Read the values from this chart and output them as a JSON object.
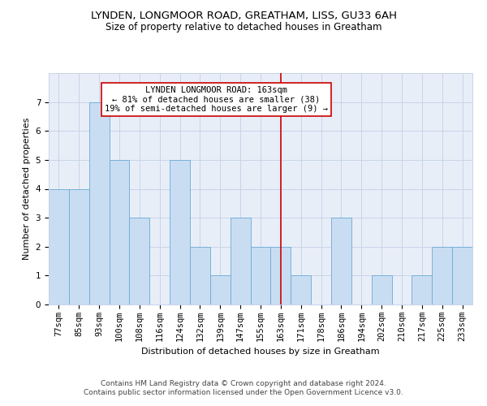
{
  "title1": "LYNDEN, LONGMOOR ROAD, GREATHAM, LISS, GU33 6AH",
  "title2": "Size of property relative to detached houses in Greatham",
  "xlabel": "Distribution of detached houses by size in Greatham",
  "ylabel": "Number of detached properties",
  "categories": [
    "77sqm",
    "85sqm",
    "93sqm",
    "100sqm",
    "108sqm",
    "116sqm",
    "124sqm",
    "132sqm",
    "139sqm",
    "147sqm",
    "155sqm",
    "163sqm",
    "171sqm",
    "178sqm",
    "186sqm",
    "194sqm",
    "202sqm",
    "210sqm",
    "217sqm",
    "225sqm",
    "233sqm"
  ],
  "values": [
    4,
    4,
    7,
    5,
    3,
    0,
    5,
    2,
    1,
    3,
    2,
    2,
    1,
    0,
    3,
    0,
    1,
    0,
    1,
    2,
    2
  ],
  "bar_color": "#c9ddf2",
  "bar_edgecolor": "#6aaad4",
  "highlight_index": 11,
  "highlight_line_color": "#cc0000",
  "annotation_text": "LYNDEN LONGMOOR ROAD: 163sqm\n← 81% of detached houses are smaller (38)\n19% of semi-detached houses are larger (9) →",
  "annotation_box_color": "#ffffff",
  "annotation_box_edgecolor": "#cc0000",
  "ylim": [
    0,
    8
  ],
  "yticks": [
    0,
    1,
    2,
    3,
    4,
    5,
    6,
    7,
    8
  ],
  "grid_color": "#c8d4e8",
  "background_color": "#e8eef8",
  "footer_line1": "Contains HM Land Registry data © Crown copyright and database right 2024.",
  "footer_line2": "Contains public sector information licensed under the Open Government Licence v3.0.",
  "title1_fontsize": 9.5,
  "title2_fontsize": 8.5,
  "xlabel_fontsize": 8,
  "ylabel_fontsize": 8,
  "tick_fontsize": 7.5,
  "annotation_fontsize": 7.5,
  "footer_fontsize": 6.5
}
